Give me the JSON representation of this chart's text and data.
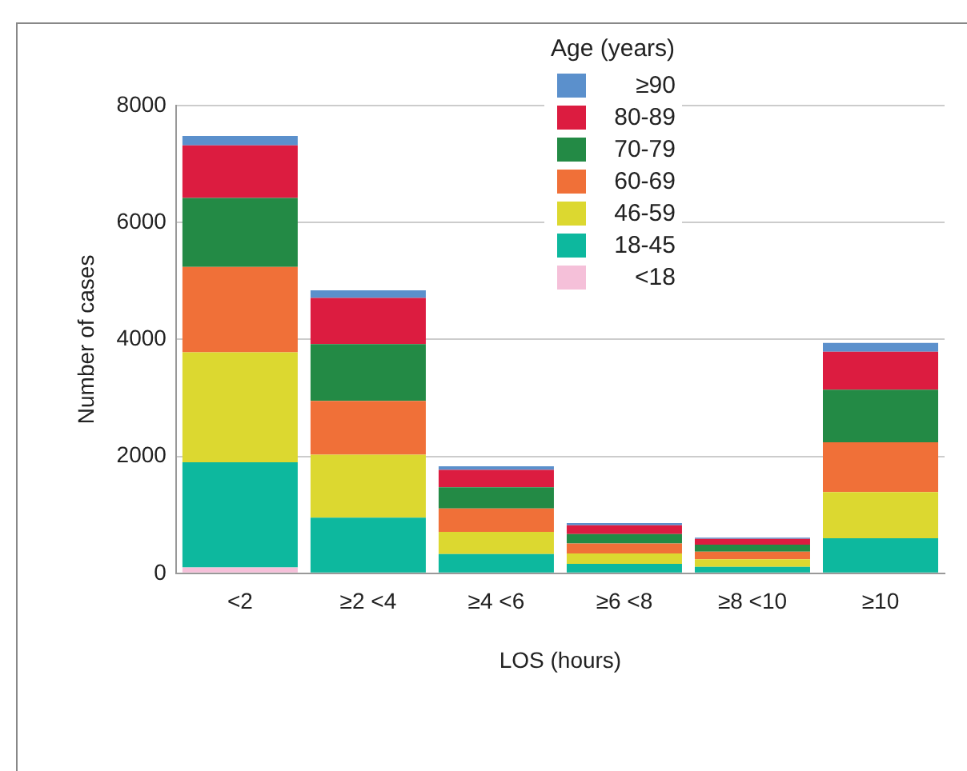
{
  "chart_data": {
    "type": "bar",
    "stacked": true,
    "xlabel": "LOS (hours)",
    "ylabel": "Number of cases",
    "legend_title": "Age (years)",
    "legend": "top right",
    "grid": "y",
    "categories": [
      "<2",
      "≥2 <4",
      "≥4 <6",
      "≥6 <8",
      "≥8 <10",
      "≥10"
    ],
    "ylim": [
      0,
      8000
    ],
    "yticks": [
      0,
      2000,
      4000,
      6000,
      8000
    ],
    "series": [
      {
        "name": "<18",
        "color": "#f5c0d9",
        "values": [
          100,
          null,
          null,
          null,
          null,
          0
        ]
      },
      {
        "name": "18-45",
        "color": "#0db89e",
        "values": [
          1800,
          950,
          330,
          160,
          110,
          600
        ]
      },
      {
        "name": "46-59",
        "color": "#dcd830",
        "values": [
          1880,
          1080,
          380,
          180,
          130,
          790
        ]
      },
      {
        "name": "60-69",
        "color": "#f07038",
        "values": [
          1460,
          920,
          400,
          170,
          130,
          850
        ]
      },
      {
        "name": "70-79",
        "color": "#238a45",
        "values": [
          1180,
          970,
          360,
          160,
          120,
          900
        ]
      },
      {
        "name": "80-89",
        "color": "#dc1c40",
        "values": [
          900,
          790,
          300,
          150,
          100,
          650
        ]
      },
      {
        "name": "≥90",
        "color": "#5b90cc",
        "values": [
          160,
          130,
          60,
          40,
          20,
          150
        ]
      }
    ]
  }
}
